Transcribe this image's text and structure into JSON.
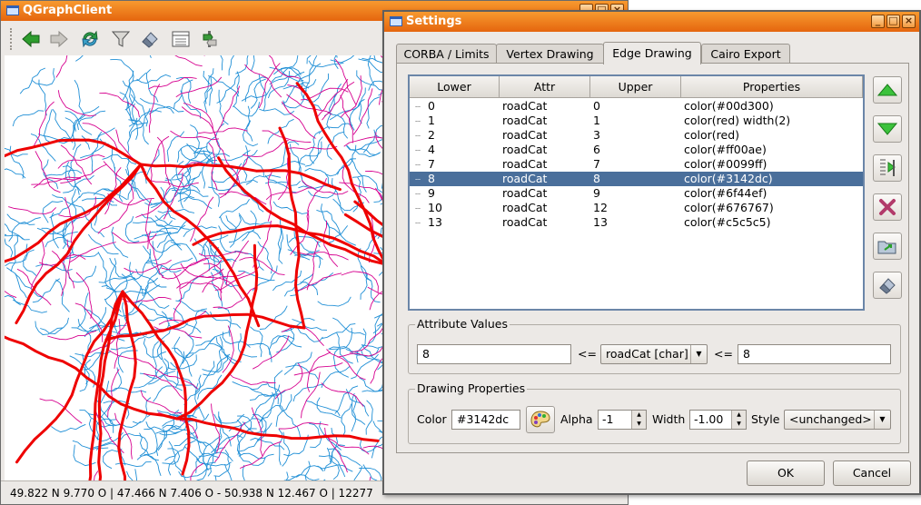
{
  "main_window": {
    "title": "QGraphClient",
    "toolbar": [
      {
        "name": "back-arrow-icon"
      },
      {
        "name": "forward-arrow-icon"
      },
      {
        "name": "refresh-icon"
      },
      {
        "name": "filter-funnel-icon"
      },
      {
        "name": "eraser-icon"
      },
      {
        "name": "table-list-icon"
      },
      {
        "name": "route-tool-icon"
      }
    ],
    "status_text": "49.822 N 9.770 O | 47.466 N 7.406 O - 50.938 N 12.467 O | 12277"
  },
  "settings": {
    "title": "Settings",
    "tabs": [
      "CORBA / Limits",
      "Vertex Drawing",
      "Edge Drawing",
      "Cairo Export"
    ],
    "active_tab": "Edge Drawing",
    "table": {
      "columns": [
        "Lower",
        "Attr",
        "Upper",
        "Properties"
      ],
      "rows": [
        {
          "lower": "0",
          "attr": "roadCat",
          "upper": "0",
          "properties": "color(#00d300)"
        },
        {
          "lower": "1",
          "attr": "roadCat",
          "upper": "1",
          "properties": "color(red) width(2)"
        },
        {
          "lower": "2",
          "attr": "roadCat",
          "upper": "3",
          "properties": "color(red)"
        },
        {
          "lower": "4",
          "attr": "roadCat",
          "upper": "6",
          "properties": "color(#ff00ae)"
        },
        {
          "lower": "7",
          "attr": "roadCat",
          "upper": "7",
          "properties": "color(#0099ff)"
        },
        {
          "lower": "8",
          "attr": "roadCat",
          "upper": "8",
          "properties": "color(#3142dc)"
        },
        {
          "lower": "9",
          "attr": "roadCat",
          "upper": "9",
          "properties": "color(#6f44ef)"
        },
        {
          "lower": "10",
          "attr": "roadCat",
          "upper": "12",
          "properties": "color(#676767)"
        },
        {
          "lower": "13",
          "attr": "roadCat",
          "upper": "13",
          "properties": "color(#c5c5c5)"
        }
      ],
      "selected_row": 5
    },
    "attribute_values": {
      "legend": "Attribute Values",
      "lower_value": "8",
      "op1": "<=",
      "attr_combo": "roadCat [char]",
      "op2": "<=",
      "upper_value": "8"
    },
    "drawing_properties": {
      "legend": "Drawing Properties",
      "color_label": "Color",
      "color_value": "#3142dc",
      "alpha_label": "Alpha",
      "alpha_value": "-1",
      "width_label": "Width",
      "width_value": "-1.00",
      "style_label": "Style",
      "style_value": "<unchanged>"
    },
    "ok_label": "OK",
    "cancel_label": "Cancel"
  },
  "colors": {
    "title_bar": "#ef7d1f",
    "selection": "#4a6f9b",
    "map_highway": "#ee0000",
    "map_minor_road": "#1f8fd6",
    "map_secondary_road": "#d6008f"
  }
}
